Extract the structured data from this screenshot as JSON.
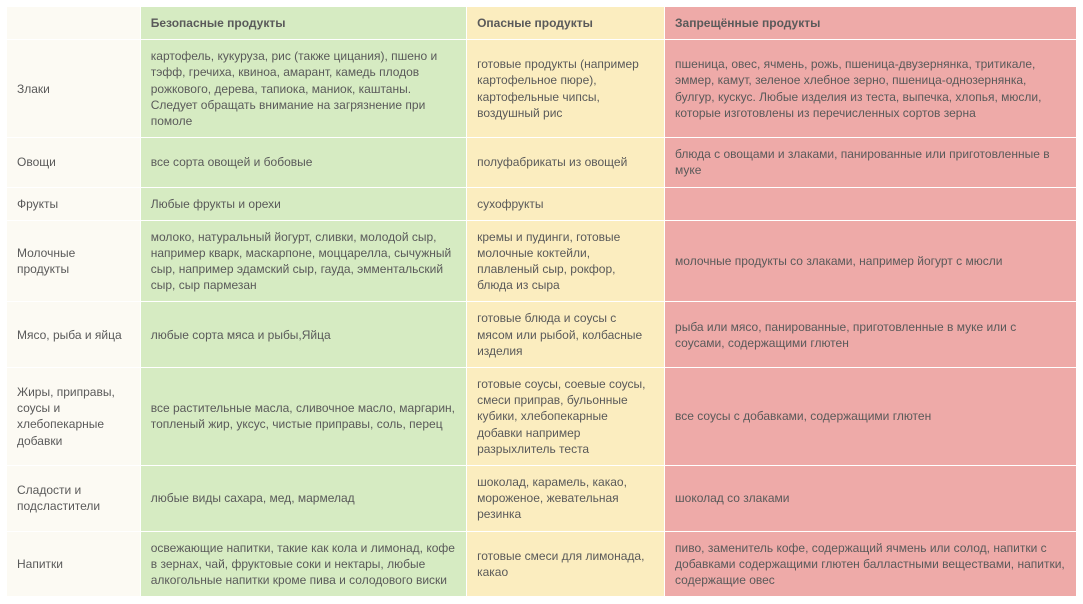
{
  "colors": {
    "label_bg": "#fcfaf3",
    "safe_bg": "#d6ebc2",
    "danger_bg": "#fbedbf",
    "forbid_bg": "#eeaaa8",
    "text": "#5a5a5a",
    "border": "#ffffff"
  },
  "columns": [
    {
      "key": "label",
      "header": ""
    },
    {
      "key": "safe",
      "header": "Безопасные продукты"
    },
    {
      "key": "danger",
      "header": "Опасные продукты"
    },
    {
      "key": "forbid",
      "header": "Запрещённые продукты"
    }
  ],
  "rows": [
    {
      "label": "Злаки",
      "safe": "картофель, кукуруза, рис (также цицания), пшено и тэфф, гречиха, квиноа, амарант, камедь плодов рожкового, дерева, тапиока, маниок, каштаны. Следует обращать внимание на загрязнение при помоле",
      "danger": "готовые продукты (например картофельное пюре), картофельные чипсы, воздушный рис",
      "forbid": "пшеница, овес, ячмень, рожь, пшеница-двузернянка, тритикале, эммер, камут, зеленое хлебное зерно, пшеница-однозернянка, булгур, кускус. Любые изделия из теста, выпечка, хлопья, мюсли, которые изготовлены из перечисленных сортов зерна"
    },
    {
      "label": "Овощи",
      "safe": "все сорта овощей и бобовые",
      "danger": "полуфабрикаты из овощей",
      "forbid": "блюда с овощами и злаками, панированные или приготовленные в муке"
    },
    {
      "label": "Фрукты",
      "safe": "Любые фрукты и орехи",
      "danger": "сухофрукты",
      "forbid": ""
    },
    {
      "label": "Молочные продукты",
      "safe": "молоко, натуральный йогурт, сливки, молодой сыр, например кварк, маскарпоне, моццарелла, сычужный сыр, например эдамский сыр, гауда, эмментальский сыр, сыр пармезан",
      "danger": "кремы и пудинги, готовые молочные коктейли, плавленый сыр, рокфор, блюда из сыра",
      "forbid": "молочные продукты со злаками, например йогурт с мюсли"
    },
    {
      "label": "Мясо, рыба и яйца",
      "safe": "любые сорта мяса и рыбы,Яйца",
      "danger": "готовые блюда и соусы с мясом или рыбой, колбасные изделия",
      "forbid": "рыба или мясо, панированные, приготовленные в муке или с соусами, содержащими глютен"
    },
    {
      "label": "Жиры, приправы, соусы и хлебопекарные добавки",
      "safe": "все растительные масла, сливочное масло, маргарин, топленый жир, уксус, чистые приправы, соль, перец",
      "danger": "готовые соусы, соевые соусы, смеси приправ, бульонные кубики, хлебопекарные добавки например разрыхлитель теста",
      "forbid": "все соусы с добавками, содержащими глютен"
    },
    {
      "label": "Сладости и подсластители",
      "safe": "любые виды сахара, мед, мармелад",
      "danger": "шоколад, карамель, какао, мороженое, жевательная резинка",
      "forbid": "шоколад со злаками"
    },
    {
      "label": "Напитки",
      "safe": "освежающие напитки, такие как кола и лимонад, кофе в зернах, чай, фруктовые соки и нектары, любые алкогольные напитки кроме пива и солодового виски",
      "danger": "готовые смеси для лимонада, какао",
      "forbid": "пиво, заменитель кофе, содержащий ячмень или солод, напитки с добавками содержащими глютен балластными веществами, напитки, содержащие овес"
    }
  ]
}
